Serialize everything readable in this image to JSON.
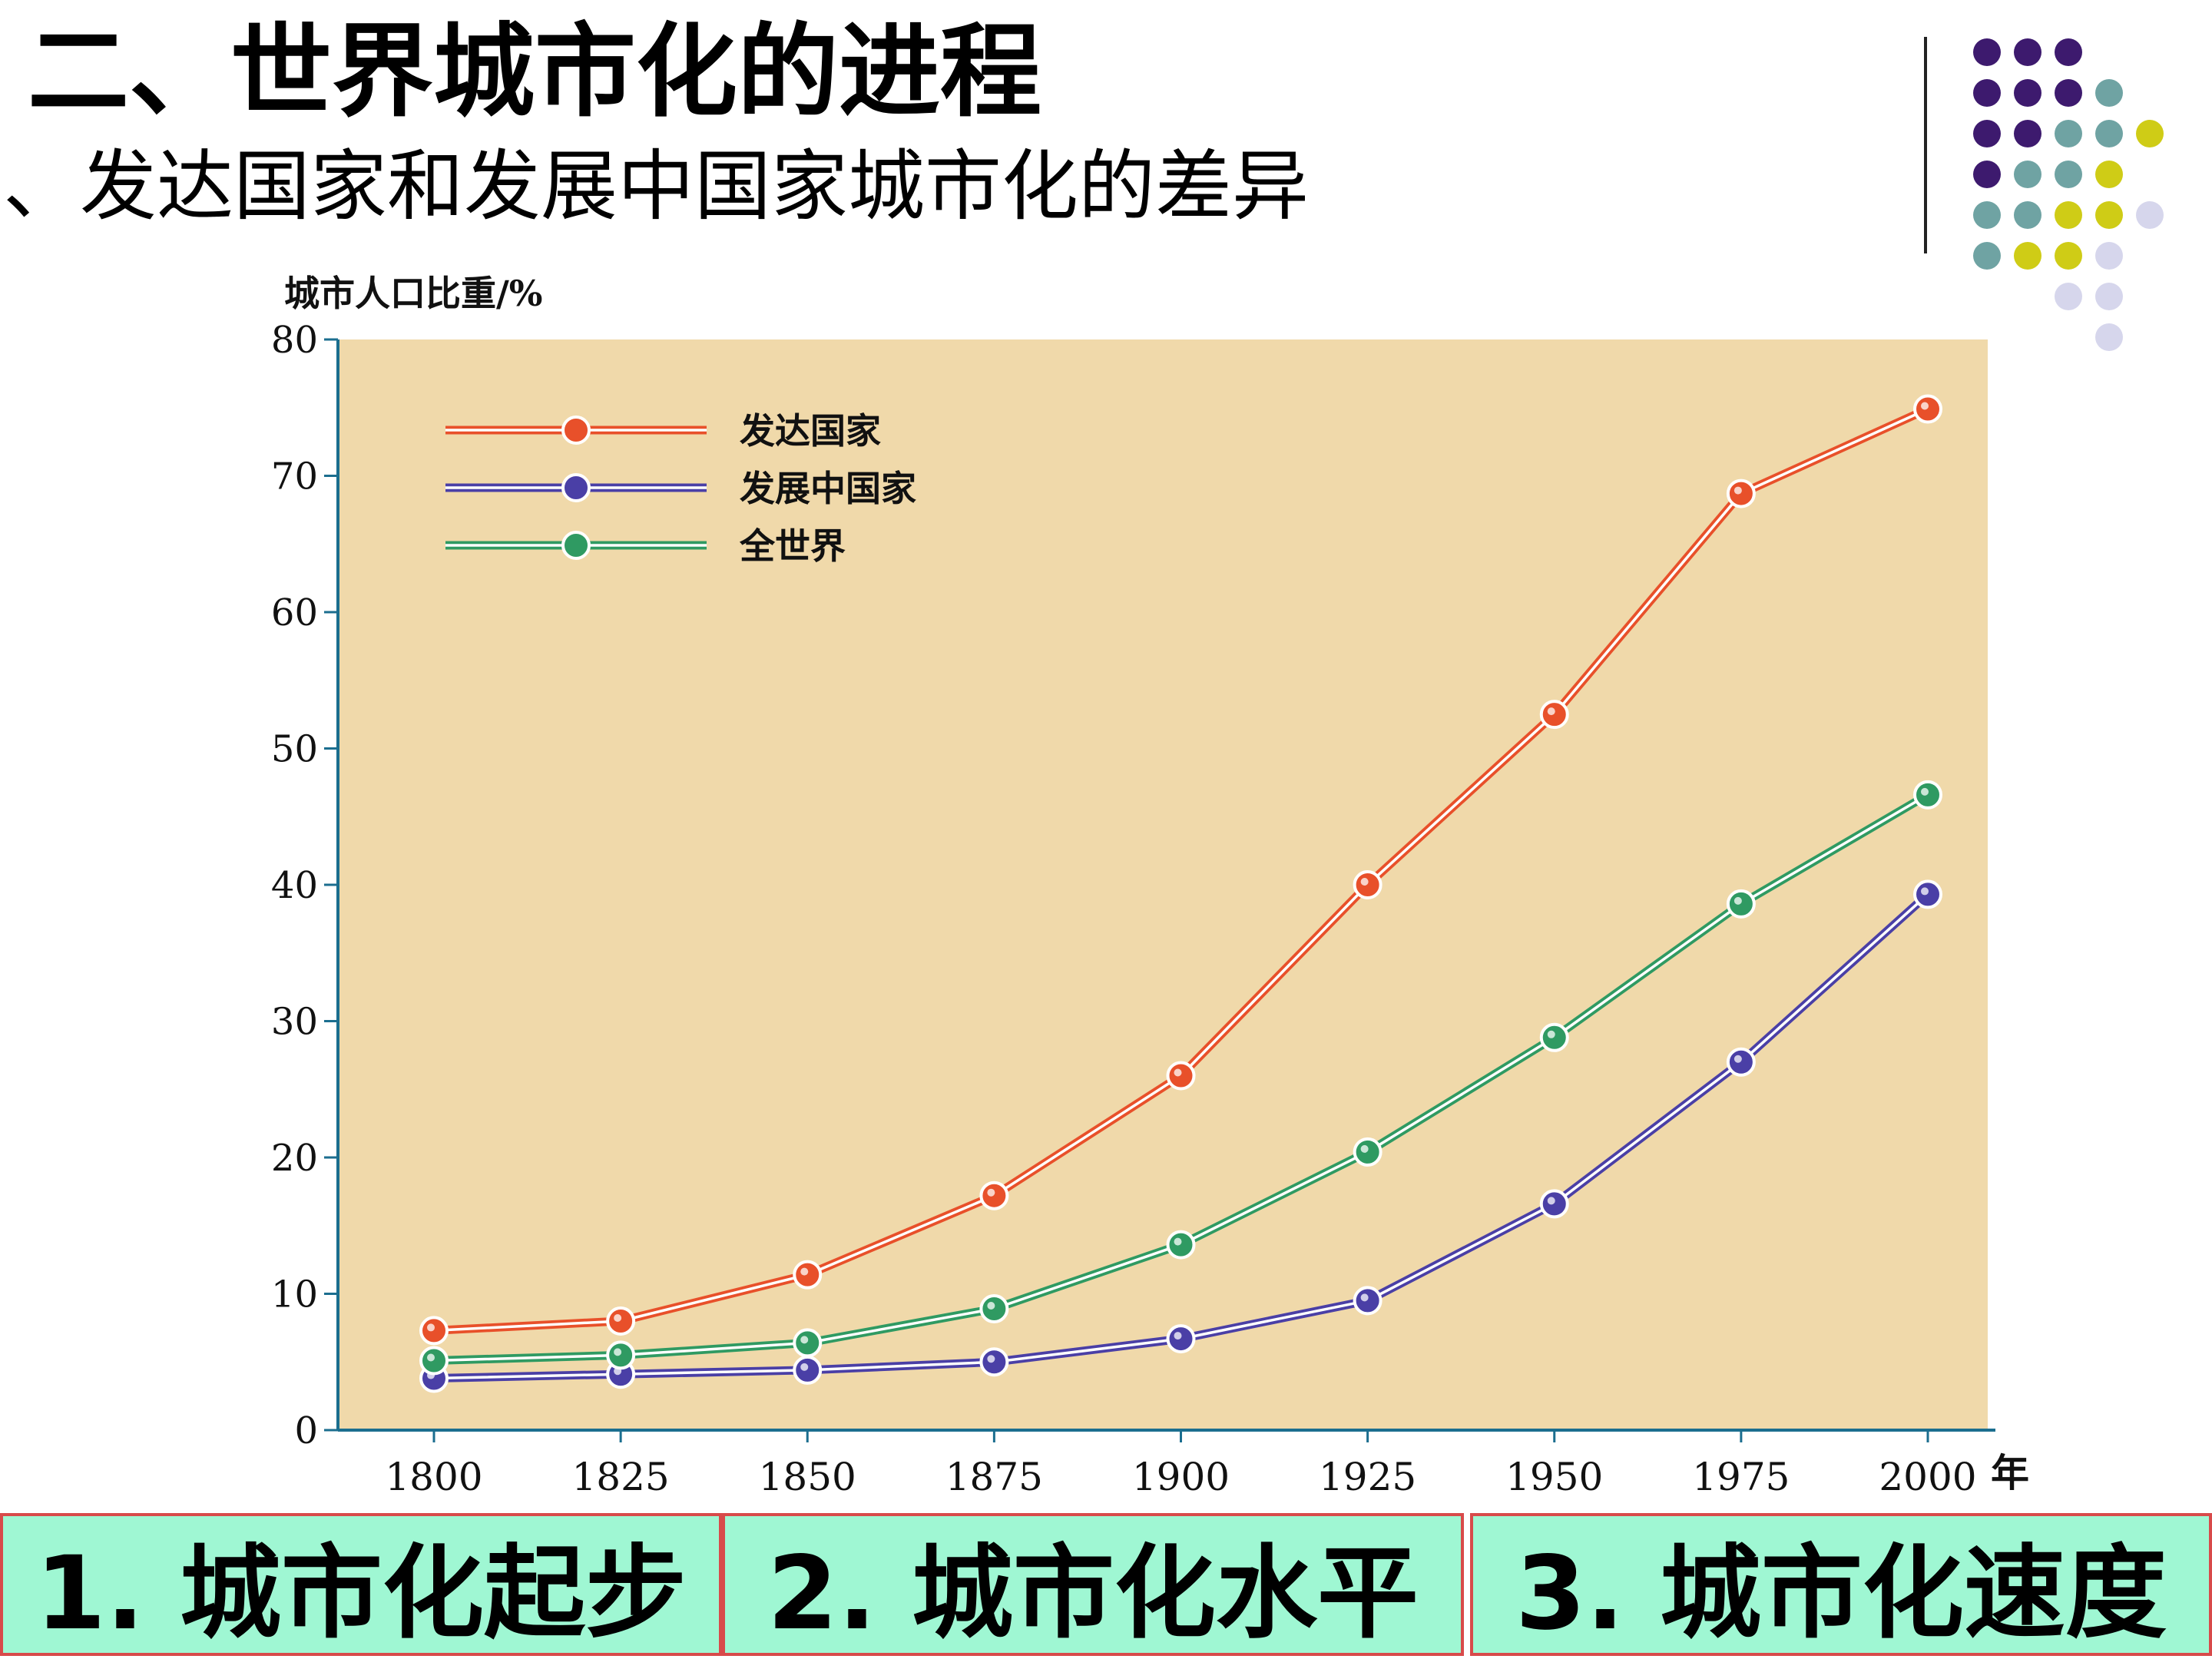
{
  "slide": {
    "title": "二、世界城市化的进程",
    "subtitle": "、发达国家和发展中国家城市化的差异"
  },
  "decoration": {
    "dot_colors": [
      "#3d1a6e",
      "#6fa3a3",
      "#cfcc16",
      "#d6d6ec"
    ]
  },
  "chart_data": {
    "type": "line",
    "ylabel": "城市人口比重/%",
    "xlabel": "年",
    "ylim": [
      0,
      80
    ],
    "yticks": [
      0,
      10,
      20,
      30,
      40,
      50,
      60,
      70,
      80
    ],
    "x": [
      "1800",
      "1825",
      "1850",
      "1875",
      "1900",
      "1925",
      "1950",
      "1975",
      "2000"
    ],
    "background_color": "#f0d9aa",
    "legend_position": "top-left",
    "series": [
      {
        "name": "发达国家",
        "color": "#e8502a",
        "values": [
          7.3,
          8.0,
          11.4,
          17.2,
          26.0,
          40.0,
          52.5,
          68.7,
          74.9
        ]
      },
      {
        "name": "发展中国家",
        "color": "#4a3fa6",
        "values": [
          3.8,
          4.1,
          4.4,
          5.0,
          6.7,
          9.5,
          16.6,
          27.0,
          39.3
        ]
      },
      {
        "name": "全世界",
        "color": "#2f9a62",
        "values": [
          5.1,
          5.5,
          6.4,
          8.9,
          13.6,
          20.4,
          28.8,
          38.6,
          46.6
        ]
      }
    ]
  },
  "bottom_boxes": [
    {
      "label": "1.  城市化起步"
    },
    {
      "label": "2.  城市化水平"
    },
    {
      "label": "3.  城市化速度"
    }
  ]
}
